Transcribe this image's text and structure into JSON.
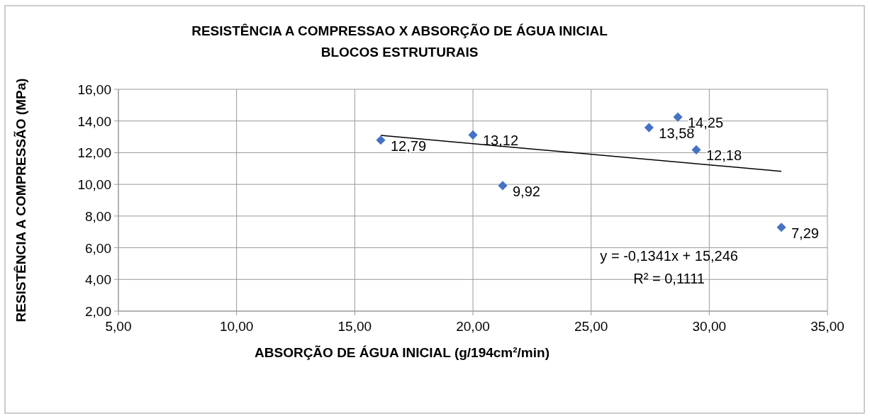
{
  "chart_data": {
    "type": "scatter",
    "title": "RESISTÊNCIA A COMPRESSAO X ABSORÇÃO DE ÁGUA INICIAL",
    "subtitle": "BLOCOS ESTRUTURAIS",
    "xlabel": "ABSORÇÃO DE ÁGUA INICIAL (g/194cm²/min)",
    "ylabel": "RESISTÊNCIA A COMPRESSÃO (MPa)",
    "series": [
      {
        "color": "#4472c4",
        "marker": "diamond",
        "x": [
          16.1,
          20.0,
          21.26,
          27.45,
          28.67,
          29.45,
          33.05
        ],
        "values": [
          12.79,
          13.12,
          9.92,
          13.58,
          14.25,
          12.18,
          7.29
        ],
        "value_labels": [
          "12,79",
          "13,12",
          "9,92",
          "13,58",
          "14,25",
          "12,18",
          "7,29"
        ]
      },
      {
        "type": "line",
        "color": "#000000",
        "x": [
          16.1,
          33.05
        ],
        "values": [
          13.09,
          10.82
        ]
      }
    ],
    "grid": true,
    "xlim": [
      5,
      35
    ],
    "ylim": [
      2,
      16
    ],
    "xticks": [
      {
        "value": 5,
        "label": "5,00"
      },
      {
        "value": 10,
        "label": "10,00"
      },
      {
        "value": 15,
        "label": "15,00"
      },
      {
        "value": 20,
        "label": "20,00"
      },
      {
        "value": 25,
        "label": "25,00"
      },
      {
        "value": 30,
        "label": "30,00"
      },
      {
        "value": 35,
        "label": "35,00"
      }
    ],
    "yticks": [
      {
        "value": 2,
        "label": "2,00"
      },
      {
        "value": 4,
        "label": "4,00"
      },
      {
        "value": 6,
        "label": "6,00"
      },
      {
        "value": 8,
        "label": "8,00"
      },
      {
        "value": 10,
        "label": "10,00"
      },
      {
        "value": 12,
        "label": "12,00"
      },
      {
        "value": 14,
        "label": "14,00"
      },
      {
        "value": 16,
        "label": "16,00"
      }
    ],
    "annotations": [
      "y = -0,1341x + 15,246",
      "R² = 0,1111"
    ]
  }
}
